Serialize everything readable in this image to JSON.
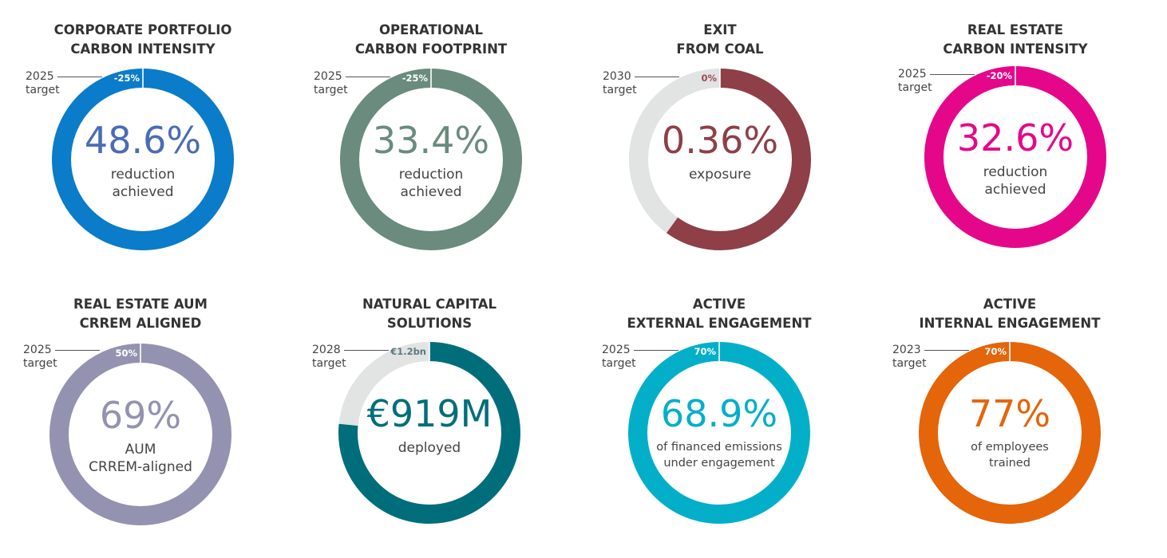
{
  "chart_data": [
    {
      "type": "pie",
      "title": [
        "CORPORATE PORTFOLIO",
        "CARBON INTENSITY"
      ],
      "target_text": [
        "2025",
        "target"
      ],
      "target_label": "-25%",
      "value": 48.6,
      "value_text": "48.6%",
      "description": [
        "reduction",
        "achieved"
      ],
      "color": "#0A7CC9",
      "value_color": "#4A6CB5",
      "track_color": "#0A7CC9",
      "target_label_color": "#ffffff"
    },
    {
      "type": "pie",
      "title": [
        "OPERATIONAL",
        "CARBON FOOTPRINT"
      ],
      "target_text": [
        "2025",
        "target"
      ],
      "target_label": "-25%",
      "value": 33.4,
      "value_text": "33.4%",
      "description": [
        "reduction",
        "achieved"
      ],
      "color": "#6A8B7E",
      "value_color": "#6A8B7E",
      "track_color": "#6A8B7E",
      "target_label_color": "#ffffff"
    },
    {
      "type": "pie",
      "title": [
        "EXIT",
        "FROM COAL"
      ],
      "target_text": [
        "2030",
        "target"
      ],
      "target_label": "0%",
      "value": 0.36,
      "value_text": "0.36%",
      "description": [
        "exposure"
      ],
      "color": "#8E3F47",
      "value_color": "#8E3F47",
      "track_color": "#E2E3E3",
      "target_label_color": "#9C4A52",
      "filled_fraction": 0.6
    },
    {
      "type": "pie",
      "title": [
        "REAL ESTATE",
        "CARBON INTENSITY"
      ],
      "target_text": [
        "2025",
        "target"
      ],
      "target_label": "-20%",
      "value": 32.6,
      "value_text": "32.6%",
      "description": [
        "reduction",
        "achieved"
      ],
      "color": "#E5078A",
      "value_color": "#E5078A",
      "track_color": "#E5078A",
      "target_label_color": "#ffffff"
    },
    {
      "type": "pie",
      "title": [
        "REAL ESTATE AUM",
        "CRREM ALIGNED"
      ],
      "target_text": [
        "2025",
        "target"
      ],
      "target_label": "50%",
      "value": 69,
      "value_text": "69%",
      "description": [
        "AUM",
        "CRREM-aligned"
      ],
      "color": "#9392B0",
      "value_color": "#9392B0",
      "track_color": "#9392B0",
      "target_label_color": "#ffffff"
    },
    {
      "type": "pie",
      "title": [
        "NATURAL CAPITAL",
        "SOLUTIONS"
      ],
      "target_text": [
        "2028",
        "target"
      ],
      "target_label": "€1.2bn",
      "value": 919,
      "value_text": "€919M",
      "description": [
        "deployed"
      ],
      "color": "#006E7A",
      "value_color": "#006E7A",
      "track_color": "#E2E3E3",
      "target_label_color": "#5E7A80",
      "filled_fraction": 0.7658
    },
    {
      "type": "pie",
      "title": [
        "ACTIVE",
        "EXTERNAL ENGAGEMENT"
      ],
      "target_text": [
        "2025",
        "target"
      ],
      "target_label": "70%",
      "value": 68.9,
      "value_text": "68.9%",
      "description": [
        "of financed emissions",
        "under engagement"
      ],
      "color": "#03AFC8",
      "value_color": "#03AFC8",
      "track_color": "#03AFC8",
      "target_label_color": "#ffffff"
    },
    {
      "type": "pie",
      "title": [
        "ACTIVE",
        "INTERNAL ENGAGEMENT"
      ],
      "target_text": [
        "2023",
        "target"
      ],
      "target_label": "70%",
      "value": 77,
      "value_text": "77%",
      "description": [
        "of employees",
        "trained"
      ],
      "color": "#E4650A",
      "value_color": "#E4650A",
      "track_color": "#E4650A",
      "target_label_color": "#ffffff"
    }
  ]
}
